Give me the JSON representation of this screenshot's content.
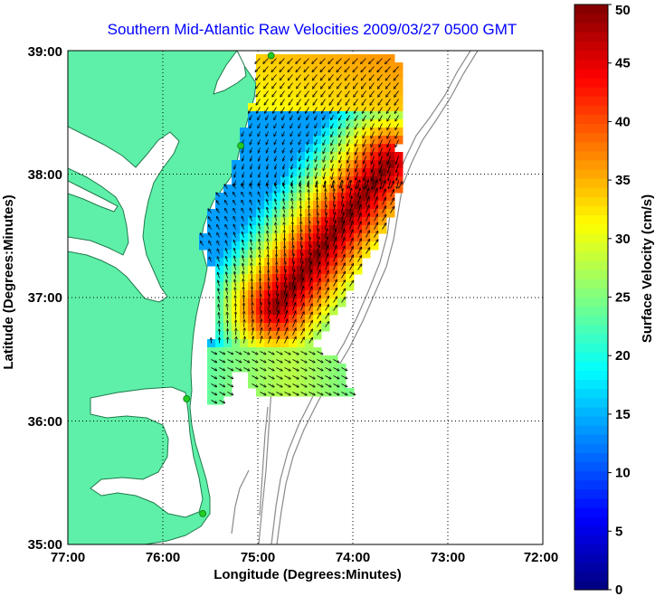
{
  "title": "Southern Mid-Atlantic Raw Velocities 2009/03/27 0500 GMT",
  "map": {
    "xlabel": "Longitude (Degrees:Minutes)",
    "ylabel": "Latitude (Degrees:Minutes)",
    "lon_range": [
      -77,
      -72
    ],
    "lat_range": [
      35,
      39
    ],
    "x_ticks": [
      {
        "value": -77,
        "label": "77:00"
      },
      {
        "value": -76,
        "label": "76:00"
      },
      {
        "value": -75,
        "label": "75:00"
      },
      {
        "value": -74,
        "label": "74:00"
      },
      {
        "value": -73,
        "label": "73:00"
      },
      {
        "value": -72,
        "label": "72:00"
      }
    ],
    "y_ticks": [
      {
        "value": 35,
        "label": "35:00"
      },
      {
        "value": 36,
        "label": "36:00"
      },
      {
        "value": 37,
        "label": "37:00"
      },
      {
        "value": 38,
        "label": "38:00"
      },
      {
        "value": 39,
        "label": "39:00"
      }
    ],
    "grid": "dotted",
    "colors": {
      "land": "#5ef0a8",
      "land_edge": "#1f7a4c",
      "ocean": "#ffffff",
      "bathymetry": "#8a8a8a",
      "station": "#22cc22"
    },
    "stations": [
      {
        "lon": -74.86,
        "lat": 38.96
      },
      {
        "lon": -75.18,
        "lat": 38.23
      },
      {
        "lon": -75.75,
        "lat": 36.18
      },
      {
        "lon": -75.58,
        "lat": 35.25
      }
    ]
  },
  "colorbar": {
    "label": "Surface Velocity (cm/s)",
    "min": 0,
    "max": 50,
    "ticks": [
      {
        "value": 0,
        "label": "0"
      },
      {
        "value": 5,
        "label": "5"
      },
      {
        "value": 10,
        "label": "10"
      },
      {
        "value": 15,
        "label": "15"
      },
      {
        "value": 20,
        "label": "20"
      },
      {
        "value": 25,
        "label": "25"
      },
      {
        "value": 30,
        "label": "30"
      },
      {
        "value": 35,
        "label": "35"
      },
      {
        "value": 40,
        "label": "40"
      },
      {
        "value": 45,
        "label": "45"
      },
      {
        "value": 50,
        "label": "50"
      }
    ],
    "colormap": "jet"
  }
}
